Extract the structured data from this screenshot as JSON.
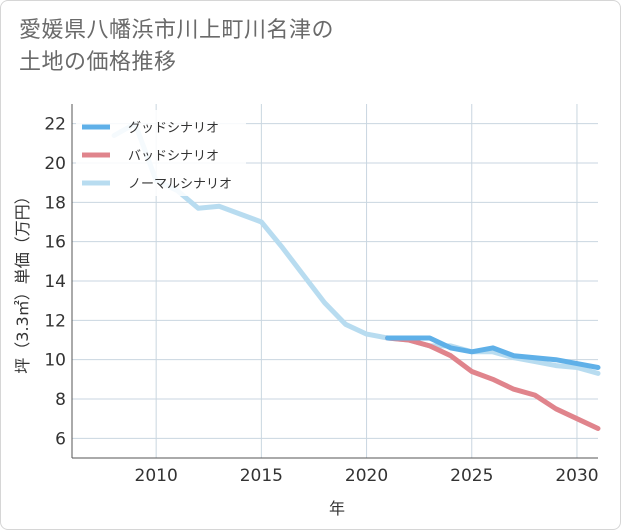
{
  "title_lines": [
    "愛媛県八幡浜市川上町川名津の",
    "土地の価格推移"
  ],
  "colors": {
    "good": "#5fb0e8",
    "bad": "#e0848c",
    "normal": "#b8dcf0",
    "grid": "#c9d6e0",
    "axis": "#555555"
  },
  "chart_data": {
    "type": "line",
    "xlabel": "年",
    "ylabel": "坪（3.3㎡）単価（万円）",
    "xlim": [
      2006,
      2031
    ],
    "ylim": [
      5,
      23
    ],
    "x_ticks": [
      2010,
      2015,
      2020,
      2025,
      2030
    ],
    "y_ticks": [
      6,
      8,
      10,
      12,
      14,
      16,
      18,
      20,
      22
    ],
    "grid": true,
    "legend_position": "top-left",
    "series": [
      {
        "name": "グッドシナリオ",
        "color": "good",
        "x": [
          2021,
          2022,
          2023,
          2024,
          2025,
          2026,
          2027,
          2028,
          2029,
          2030,
          2031
        ],
        "y": [
          11.1,
          11.1,
          11.1,
          10.6,
          10.4,
          10.6,
          10.2,
          10.1,
          10.0,
          9.8,
          9.6
        ]
      },
      {
        "name": "バッドシナリオ",
        "color": "bad",
        "x": [
          2021,
          2022,
          2023,
          2024,
          2025,
          2026,
          2027,
          2028,
          2029,
          2030,
          2031
        ],
        "y": [
          11.1,
          11.0,
          10.7,
          10.2,
          9.4,
          9.0,
          8.5,
          8.2,
          7.5,
          7.0,
          6.5
        ]
      },
      {
        "name": "ノーマルシナリオ",
        "color": "normal",
        "x": [
          2008,
          2009,
          2010,
          2011,
          2012,
          2013,
          2014,
          2015,
          2016,
          2017,
          2018,
          2019,
          2020,
          2021,
          2022,
          2023,
          2024,
          2025,
          2026,
          2027,
          2028,
          2029,
          2030,
          2031
        ],
        "y": [
          21.4,
          22.0,
          19.1,
          18.6,
          17.7,
          17.8,
          17.4,
          17.0,
          15.7,
          14.3,
          12.9,
          11.8,
          11.3,
          11.1,
          11.0,
          10.7,
          10.7,
          10.4,
          10.4,
          10.1,
          9.9,
          9.7,
          9.6,
          9.3
        ]
      }
    ]
  }
}
